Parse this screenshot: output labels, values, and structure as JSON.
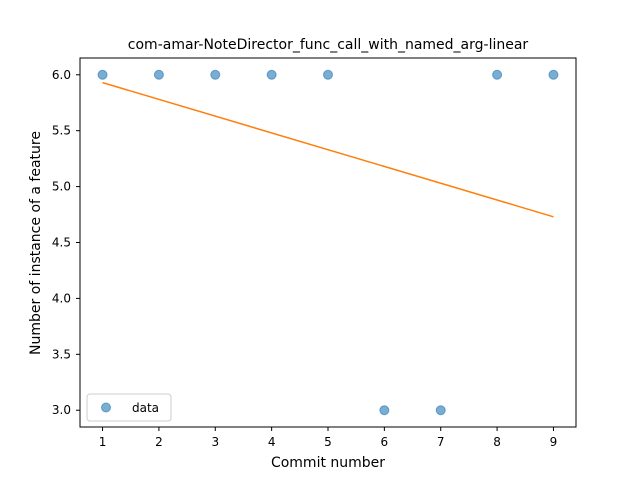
{
  "chart_data": {
    "type": "scatter",
    "title": "com-amar-NoteDirector_func_call_with_named_arg-linear",
    "xlabel": "Commit number",
    "ylabel": "Number of instance of a feature",
    "xlim": [
      0.6,
      9.4
    ],
    "ylim": [
      2.85,
      6.15
    ],
    "x_ticks": [
      1,
      2,
      3,
      4,
      5,
      6,
      7,
      8,
      9
    ],
    "y_ticks": [
      3.0,
      3.5,
      4.0,
      4.5,
      5.0,
      5.5,
      6.0
    ],
    "series": [
      {
        "name": "data",
        "type": "scatter",
        "x": [
          1,
          2,
          3,
          4,
          5,
          6,
          7,
          8,
          9
        ],
        "y": [
          6,
          6,
          6,
          6,
          6,
          3,
          3,
          6,
          6
        ],
        "color": "#1f77b4"
      },
      {
        "type": "line",
        "x": [
          1,
          9
        ],
        "y": [
          5.93,
          4.73
        ],
        "color": "#ff7f0e"
      }
    ],
    "legend": {
      "placement": "lower-left",
      "entries": [
        "data"
      ]
    },
    "grid": false
  }
}
